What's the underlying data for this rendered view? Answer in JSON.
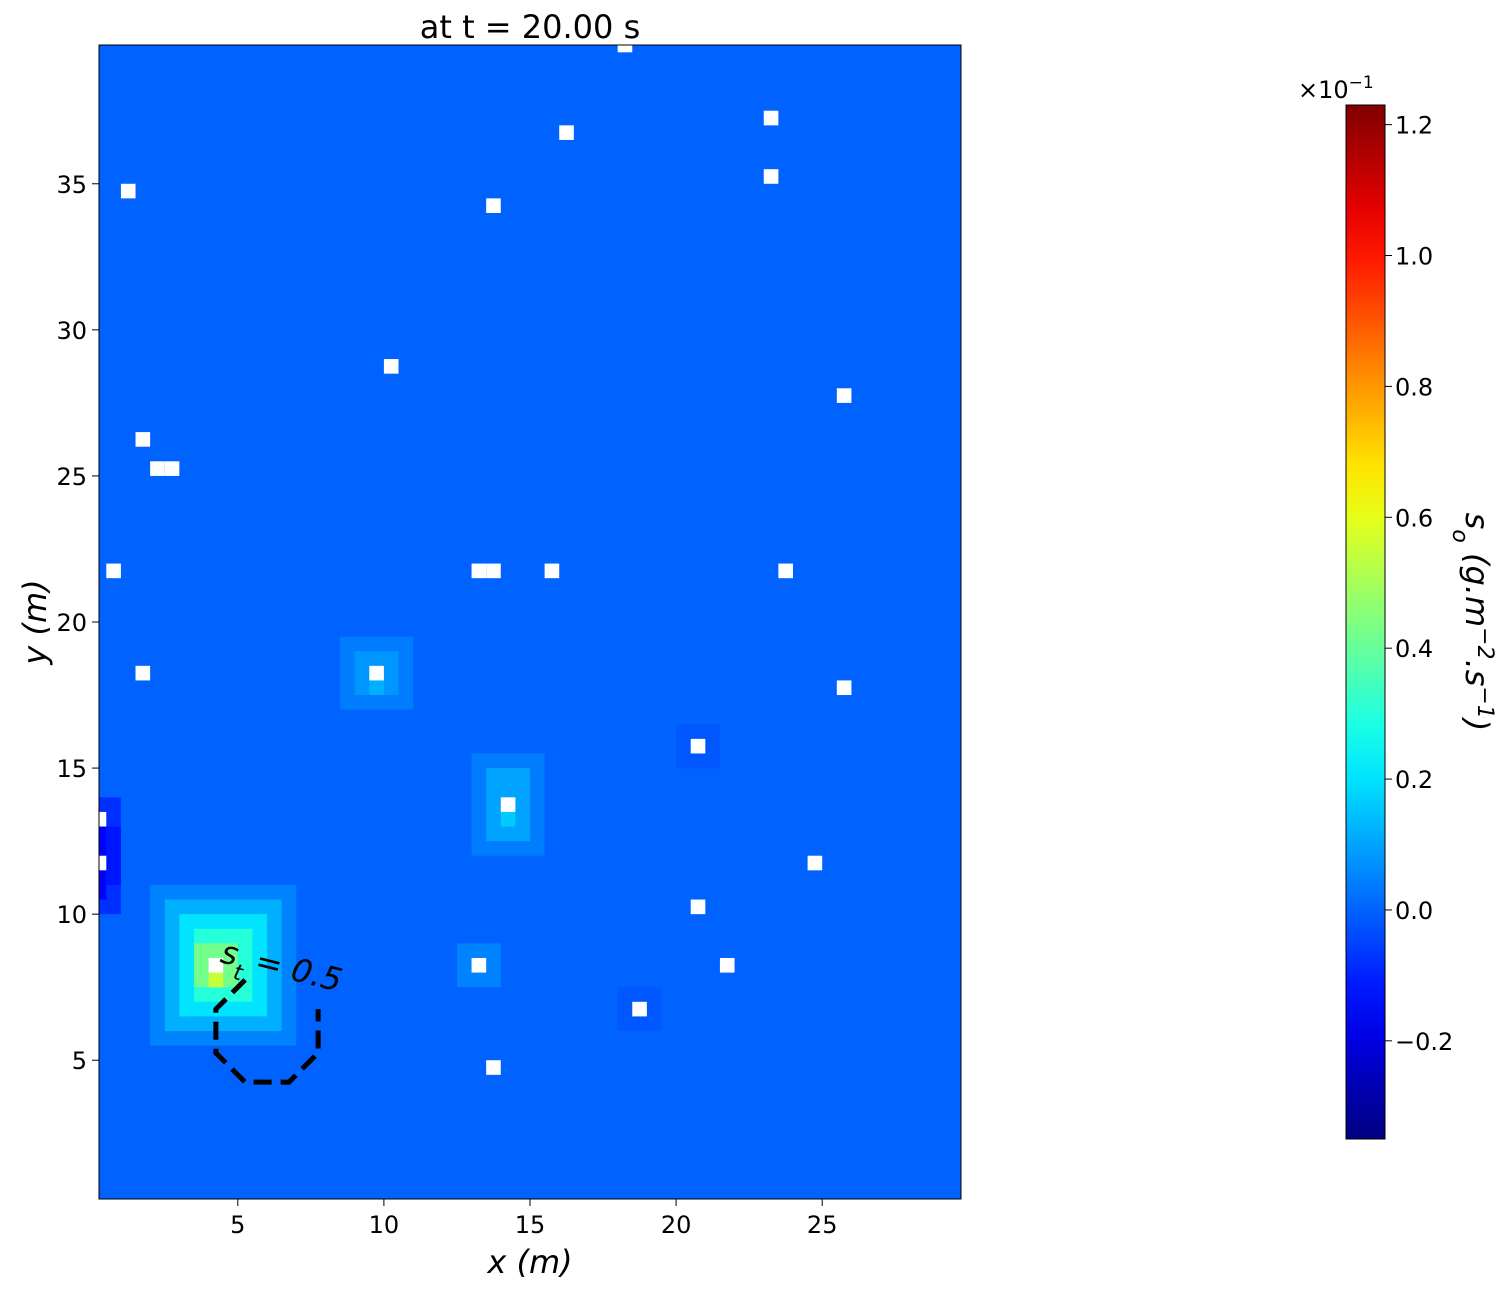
{
  "chart_data": {
    "type": "heatmap",
    "title": "at t = 20.00 s",
    "x_label": "x (m)",
    "y_label": "y (m)",
    "xlim": [
      0.25,
      29.75
    ],
    "ylim": [
      0.25,
      39.75
    ],
    "xticks": [
      5,
      10,
      15,
      20,
      25
    ],
    "yticks": [
      5,
      10,
      15,
      20,
      25,
      30,
      35
    ],
    "cell_size": 0.5,
    "patches": {
      "x0": [
        0,
        2,
        2.5,
        3,
        3.5,
        3.5,
        4,
        0,
        0.5,
        0,
        8.5,
        9,
        9.5,
        13,
        13.5,
        14,
        12.5,
        20,
        18
      ],
      "x1": [
        30,
        7,
        6.5,
        6,
        5.5,
        5,
        4.5,
        1,
        1,
        0.5,
        11,
        10.5,
        10,
        15.5,
        15,
        14.5,
        14,
        21.5,
        19.5
      ],
      "y0": [
        0,
        5.5,
        6,
        6.5,
        7,
        7.5,
        7.5,
        10,
        11,
        10.5,
        17,
        17.5,
        17.5,
        12,
        12.5,
        13,
        7.5,
        15,
        6
      ],
      "y1": [
        40,
        11,
        10.5,
        10,
        9.5,
        9,
        8,
        14,
        13,
        13.5,
        19.5,
        19,
        18,
        15.5,
        15,
        13.5,
        9,
        16.5,
        7.5
      ],
      "values": [
        0,
        0.05,
        0.12,
        0.2,
        0.3,
        0.42,
        0.55,
        -0.08,
        -0.12,
        -0.15,
        0.04,
        0.08,
        0.12,
        0.04,
        0.1,
        0.16,
        0.05,
        -0.02,
        -0.02
      ]
    },
    "masked": {
      "x": [
        18.25,
        23.25,
        16.25,
        23.25,
        1.25,
        13.75,
        10.25,
        25.75,
        1.75,
        2.25,
        2.75,
        0.75,
        13.25,
        13.75,
        15.75,
        23.75,
        1.75,
        9.75,
        25.75,
        20.75,
        14.25,
        0.25,
        0.25,
        24.75,
        20.75,
        4.25,
        13.25,
        21.75,
        18.75,
        13.75
      ],
      "y": [
        39.75,
        37.25,
        36.75,
        35.25,
        34.75,
        34.25,
        28.75,
        27.75,
        26.25,
        25.25,
        25.25,
        21.75,
        21.75,
        21.75,
        21.75,
        21.75,
        18.25,
        18.25,
        17.75,
        15.75,
        13.75,
        13.25,
        11.75,
        11.75,
        10.25,
        8.25,
        8.25,
        8.25,
        6.75,
        4.75
      ]
    },
    "contour": {
      "symbol": "s",
      "subscript": "t",
      "label": " = 0.5",
      "color": "#000000",
      "x": [
        5.25,
        4.25,
        4.25,
        5.25,
        6.75,
        7.75,
        7.75
      ],
      "y": [
        7.75,
        6.75,
        5.25,
        4.25,
        4.25,
        5.25,
        6.75
      ]
    },
    "colormap": "jet",
    "clim": [
      -0.35,
      1.23
    ],
    "colorbar_ticks": [
      {
        "value": -0.2,
        "label": "−0.2"
      },
      {
        "value": 0,
        "label": "0.0"
      },
      0.2,
      0.4,
      0.6,
      0.8,
      {
        "value": 1,
        "label": "1.0"
      },
      1.2
    ],
    "colorbar_offset": {
      "base": "×10",
      "exponent": "−1"
    },
    "colorbar_label": [
      {
        "text": "s",
        "style": "normal"
      },
      {
        "text": "o",
        "style": "sub"
      },
      {
        "text": " (g.m",
        "style": "normal"
      },
      {
        "text": "−2",
        "style": "sup"
      },
      {
        "text": ".s",
        "style": "normal"
      },
      {
        "text": "−1",
        "style": "sup"
      },
      {
        "text": ")",
        "style": "normal"
      }
    ]
  }
}
